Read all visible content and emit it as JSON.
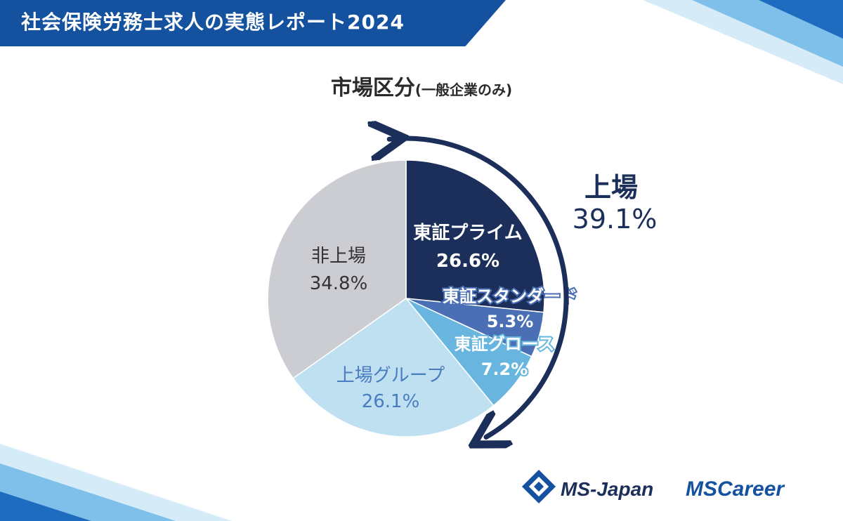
{
  "header": {
    "title": "社会保険労務士求人の実態レポート2024"
  },
  "chart_data": {
    "type": "pie",
    "title": "市場区分",
    "subtitle": "(一般企業のみ)",
    "slices": [
      {
        "label": "東証プライム",
        "value": 26.6,
        "display": "26.6%",
        "color": "#1b2f5a",
        "text_color": "#ffffff"
      },
      {
        "label": "東証スタンダード",
        "value": 5.3,
        "display": "5.3%",
        "color": "#4a6fb4",
        "text_color": "#ffffff"
      },
      {
        "label": "東証グロース",
        "value": 7.2,
        "display": "7.2%",
        "color": "#68b6df",
        "text_color": "#ffffff"
      },
      {
        "label": "上場グループ",
        "value": 26.1,
        "display": "26.1%",
        "color": "#bfe0f1",
        "text_color": "#4a7cc0"
      },
      {
        "label": "非上場",
        "value": 34.8,
        "display": "34.8%",
        "color": "#cccdd2",
        "text_color": "#333333"
      }
    ],
    "annotation": {
      "label": "上場",
      "value": "39.1%",
      "color": "#1b2f5a"
    }
  },
  "logos": {
    "ms_japan": "MS-Japan",
    "ms_career_ms": "MS",
    "ms_career_rest": "Career"
  },
  "colors": {
    "header": "#1452a0",
    "accent_dark": "#1b2f5a"
  }
}
